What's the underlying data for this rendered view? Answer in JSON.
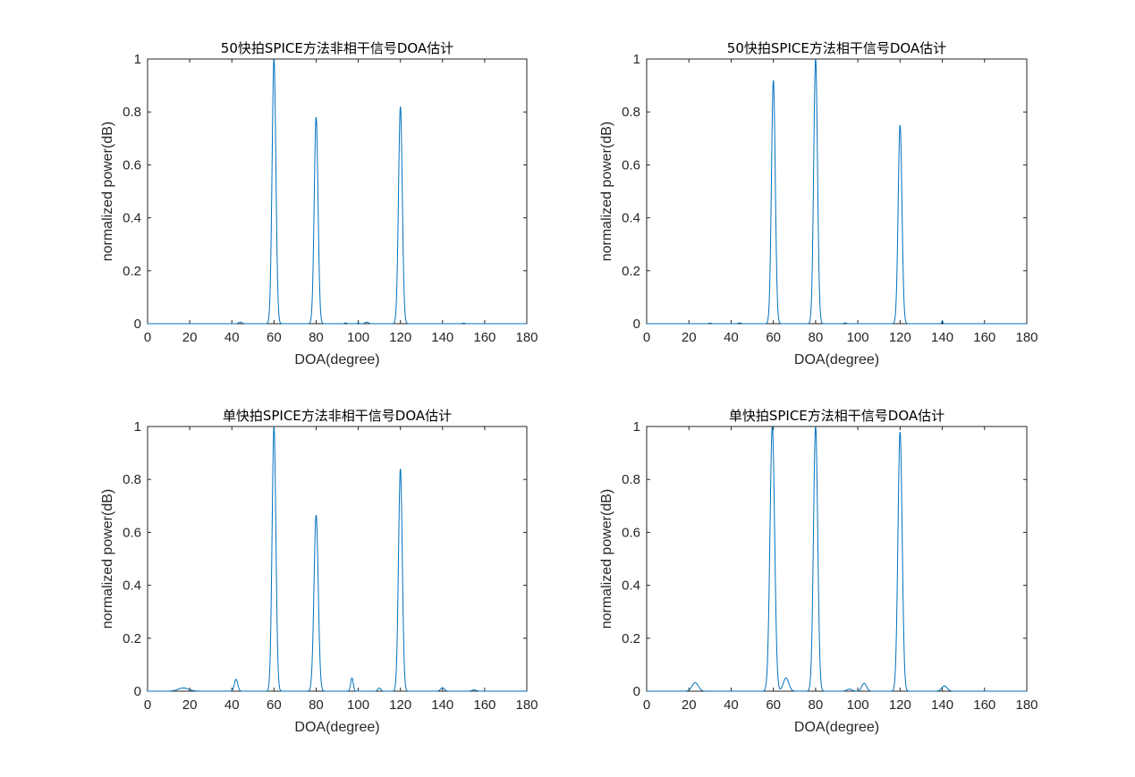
{
  "chart_data": [
    {
      "type": "line",
      "title": "50快拍SPICE方法非相干信号DOA估计",
      "xlabel": "DOA(degree)",
      "ylabel": "normalized power(dB)",
      "xlim": [
        0,
        180
      ],
      "ylim": [
        0,
        1
      ],
      "xticks": [
        "0",
        "20",
        "40",
        "60",
        "80",
        "100",
        "120",
        "140",
        "160",
        "180"
      ],
      "yticks": [
        "0",
        "0.2",
        "0.4",
        "0.6",
        "0.8",
        "1"
      ],
      "grid": false,
      "line_color": "#0072bd",
      "peaks": [
        {
          "x": 60,
          "y": 1.0,
          "w": 0.9
        },
        {
          "x": 80,
          "y": 0.78,
          "w": 0.9
        },
        {
          "x": 120,
          "y": 0.82,
          "w": 0.9
        },
        {
          "x": 44,
          "y": 0.006,
          "w": 0.8
        },
        {
          "x": 104,
          "y": 0.006,
          "w": 0.8
        },
        {
          "x": 100,
          "y": 0.004,
          "w": 0.3
        },
        {
          "x": 94,
          "y": 0.003,
          "w": 0.5
        },
        {
          "x": 150,
          "y": 0.002,
          "w": 0.6
        }
      ]
    },
    {
      "type": "line",
      "title": "50快拍SPICE方法相干信号DOA估计",
      "xlabel": "DOA(degree)",
      "ylabel": "normalized power(dB)",
      "xlim": [
        0,
        180
      ],
      "ylim": [
        0,
        1
      ],
      "xticks": [
        "0",
        "20",
        "40",
        "60",
        "80",
        "100",
        "120",
        "140",
        "160",
        "180"
      ],
      "yticks": [
        "0",
        "0.2",
        "0.4",
        "0.6",
        "0.8",
        "1"
      ],
      "grid": false,
      "line_color": "#0072bd",
      "peaks": [
        {
          "x": 60,
          "y": 0.92,
          "w": 0.9
        },
        {
          "x": 80,
          "y": 1.0,
          "w": 0.9
        },
        {
          "x": 120,
          "y": 0.75,
          "w": 0.9
        },
        {
          "x": 140,
          "y": 0.01,
          "w": 0.3
        },
        {
          "x": 94,
          "y": 0.003,
          "w": 0.5
        },
        {
          "x": 44,
          "y": 0.003,
          "w": 0.6
        },
        {
          "x": 30,
          "y": 0.002,
          "w": 0.6
        }
      ]
    },
    {
      "type": "line",
      "title": "单快拍SPICE方法非相干信号DOA估计",
      "xlabel": "DOA(degree)",
      "ylabel": "normalized power(dB)",
      "xlim": [
        0,
        180
      ],
      "ylim": [
        0,
        1
      ],
      "xticks": [
        "0",
        "20",
        "40",
        "60",
        "80",
        "100",
        "120",
        "140",
        "160",
        "180"
      ],
      "yticks": [
        "0",
        "0.2",
        "0.4",
        "0.6",
        "0.8",
        "1"
      ],
      "grid": false,
      "line_color": "#0072bd",
      "peaks": [
        {
          "x": 60,
          "y": 1.0,
          "w": 0.9
        },
        {
          "x": 80,
          "y": 0.665,
          "w": 1.0
        },
        {
          "x": 120,
          "y": 0.84,
          "w": 0.9
        },
        {
          "x": 42,
          "y": 0.045,
          "w": 0.8
        },
        {
          "x": 97,
          "y": 0.05,
          "w": 0.6
        },
        {
          "x": 17,
          "y": 0.012,
          "w": 2.5
        },
        {
          "x": 110,
          "y": 0.012,
          "w": 0.7
        },
        {
          "x": 140,
          "y": 0.013,
          "w": 0.9
        },
        {
          "x": 155,
          "y": 0.005,
          "w": 1.0
        }
      ]
    },
    {
      "type": "line",
      "title": "单快拍SPICE方法相干信号DOA估计",
      "xlabel": "DOA(degree)",
      "ylabel": "normalized power(dB)",
      "xlim": [
        0,
        180
      ],
      "ylim": [
        0,
        1
      ],
      "xticks": [
        "0",
        "20",
        "40",
        "60",
        "80",
        "100",
        "120",
        "140",
        "160",
        "180"
      ],
      "yticks": [
        "0",
        "0.2",
        "0.4",
        "0.6",
        "0.8",
        "1"
      ],
      "grid": false,
      "line_color": "#0072bd",
      "peaks": [
        {
          "x": 59.5,
          "y": 1.0,
          "w": 1.1
        },
        {
          "x": 80,
          "y": 1.0,
          "w": 1.0
        },
        {
          "x": 120,
          "y": 0.98,
          "w": 1.0
        },
        {
          "x": 23,
          "y": 0.032,
          "w": 1.5
        },
        {
          "x": 66,
          "y": 0.05,
          "w": 1.3
        },
        {
          "x": 103,
          "y": 0.03,
          "w": 1.1
        },
        {
          "x": 96,
          "y": 0.008,
          "w": 1.2
        },
        {
          "x": 141,
          "y": 0.02,
          "w": 1.3
        }
      ]
    }
  ]
}
